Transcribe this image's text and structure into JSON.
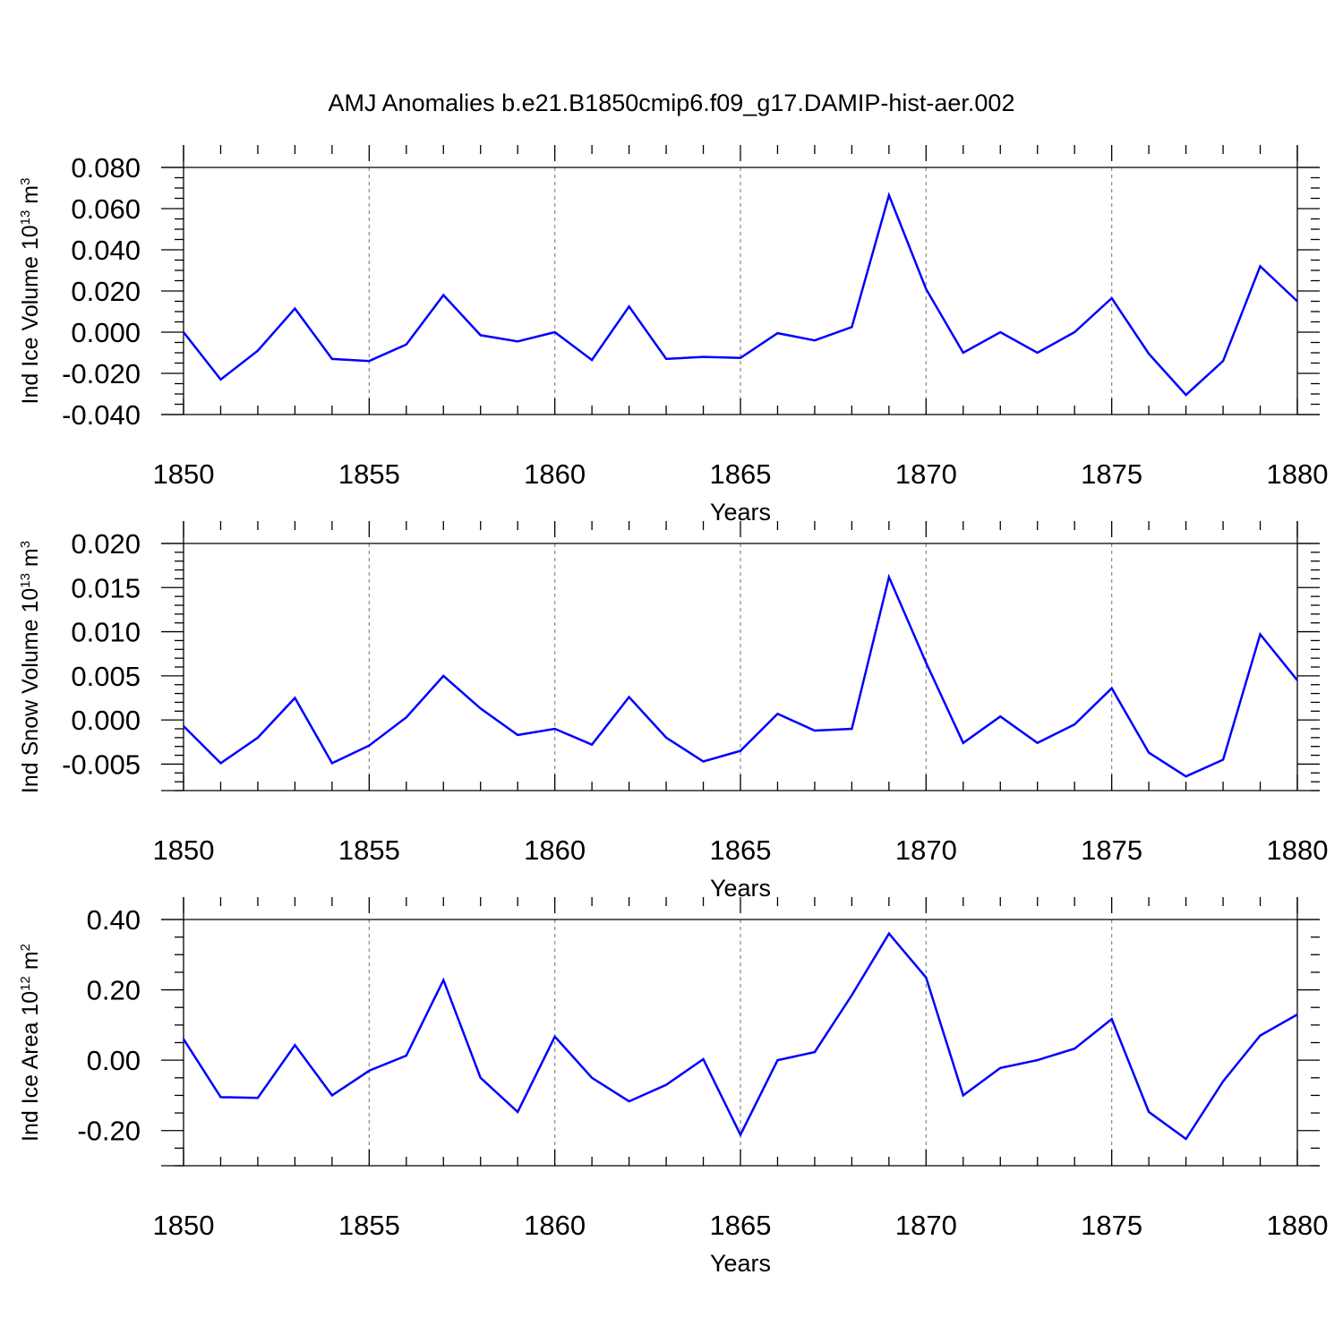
{
  "title": "AMJ Anomalies b.e21.B1850cmip6.f09_g17.DAMIP-hist-aer.002",
  "line_color": "#0000ff",
  "chart_data": [
    {
      "type": "line",
      "ylabel": {
        "prefix": "Ind Ice Volume 10",
        "exponent": "13",
        "unit": " m",
        "unit_exponent": "3"
      },
      "xlabel": "Years",
      "xlim": [
        1850,
        1880
      ],
      "ylim": [
        -0.04,
        0.08
      ],
      "yticks": [
        0.08,
        0.06,
        0.04,
        0.02,
        0.0,
        -0.02,
        -0.04
      ],
      "ytick_labels": [
        "0.080",
        "0.060",
        "0.040",
        "0.020",
        "0.000",
        "-0.020",
        "-0.040"
      ],
      "ytick_minor_step": 0.005,
      "xticks": [
        1850,
        1855,
        1860,
        1865,
        1870,
        1875,
        1880
      ],
      "x": [
        1850,
        1851,
        1852,
        1853,
        1854,
        1855,
        1856,
        1857,
        1858,
        1859,
        1860,
        1861,
        1862,
        1863,
        1864,
        1865,
        1866,
        1867,
        1868,
        1869,
        1870,
        1871,
        1872,
        1873,
        1874,
        1875,
        1876,
        1877,
        1878,
        1879,
        1880
      ],
      "series": [
        {
          "values": [
            0.0,
            -0.023,
            -0.009,
            0.0115,
            -0.013,
            -0.014,
            -0.006,
            0.018,
            -0.0015,
            -0.0045,
            0.0,
            -0.0135,
            0.0125,
            -0.013,
            -0.012,
            -0.0125,
            -0.0005,
            -0.004,
            0.0025,
            0.0665,
            0.021,
            -0.01,
            0.0,
            -0.01,
            0.0,
            0.0165,
            -0.0105,
            -0.0305,
            -0.014,
            0.032,
            0.015
          ]
        }
      ]
    },
    {
      "type": "line",
      "ylabel": {
        "prefix": "Ind Snow Volume 10",
        "exponent": "13",
        "unit": " m",
        "unit_exponent": "3"
      },
      "xlabel": "Years",
      "xlim": [
        1850,
        1880
      ],
      "ylim": [
        -0.008,
        0.02
      ],
      "yticks": [
        0.02,
        0.015,
        0.01,
        0.005,
        0.0,
        -0.005
      ],
      "ytick_labels": [
        "0.020",
        "0.015",
        "0.010",
        "0.005",
        "0.000",
        "-0.005"
      ],
      "ytick_minor_step": 0.001,
      "xticks": [
        1850,
        1855,
        1860,
        1865,
        1870,
        1875,
        1880
      ],
      "x": [
        1850,
        1851,
        1852,
        1853,
        1854,
        1855,
        1856,
        1857,
        1858,
        1859,
        1860,
        1861,
        1862,
        1863,
        1864,
        1865,
        1866,
        1867,
        1868,
        1869,
        1870,
        1871,
        1872,
        1873,
        1874,
        1875,
        1876,
        1877,
        1878,
        1879,
        1880
      ],
      "series": [
        {
          "values": [
            -0.0007,
            -0.0049,
            -0.002,
            0.0025,
            -0.0049,
            -0.0029,
            0.0003,
            0.005,
            0.0013,
            -0.0017,
            -0.001,
            -0.0028,
            0.0026,
            -0.002,
            -0.0047,
            -0.0035,
            0.0007,
            -0.0012,
            -0.001,
            0.0162,
            0.0065,
            -0.0026,
            0.0004,
            -0.0026,
            -0.0005,
            0.0036,
            -0.0037,
            -0.0064,
            -0.0045,
            0.0097,
            0.0045
          ]
        }
      ]
    },
    {
      "type": "line",
      "ylabel": {
        "prefix": "Ind Ice Area 10",
        "exponent": "12",
        "unit": " m",
        "unit_exponent": "2"
      },
      "xlabel": "Years",
      "xlim": [
        1850,
        1880
      ],
      "ylim": [
        -0.3,
        0.4
      ],
      "yticks": [
        0.4,
        0.2,
        0.0,
        -0.2
      ],
      "ytick_labels": [
        "0.40",
        "0.20",
        "0.00",
        "-0.20"
      ],
      "ytick_minor_step": 0.05,
      "xticks": [
        1850,
        1855,
        1860,
        1865,
        1870,
        1875,
        1880
      ],
      "x": [
        1850,
        1851,
        1852,
        1853,
        1854,
        1855,
        1856,
        1857,
        1858,
        1859,
        1860,
        1861,
        1862,
        1863,
        1864,
        1865,
        1866,
        1867,
        1868,
        1869,
        1870,
        1871,
        1872,
        1873,
        1874,
        1875,
        1876,
        1877,
        1878,
        1879,
        1880
      ],
      "series": [
        {
          "values": [
            0.06,
            -0.105,
            -0.107,
            0.043,
            -0.1,
            -0.03,
            0.013,
            0.228,
            -0.05,
            -0.147,
            0.067,
            -0.05,
            -0.117,
            -0.07,
            0.003,
            -0.212,
            0.0,
            0.023,
            0.185,
            0.36,
            0.235,
            -0.1,
            -0.022,
            0.0,
            0.033,
            0.117,
            -0.147,
            -0.224,
            -0.06,
            0.07,
            0.13
          ]
        }
      ]
    }
  ]
}
